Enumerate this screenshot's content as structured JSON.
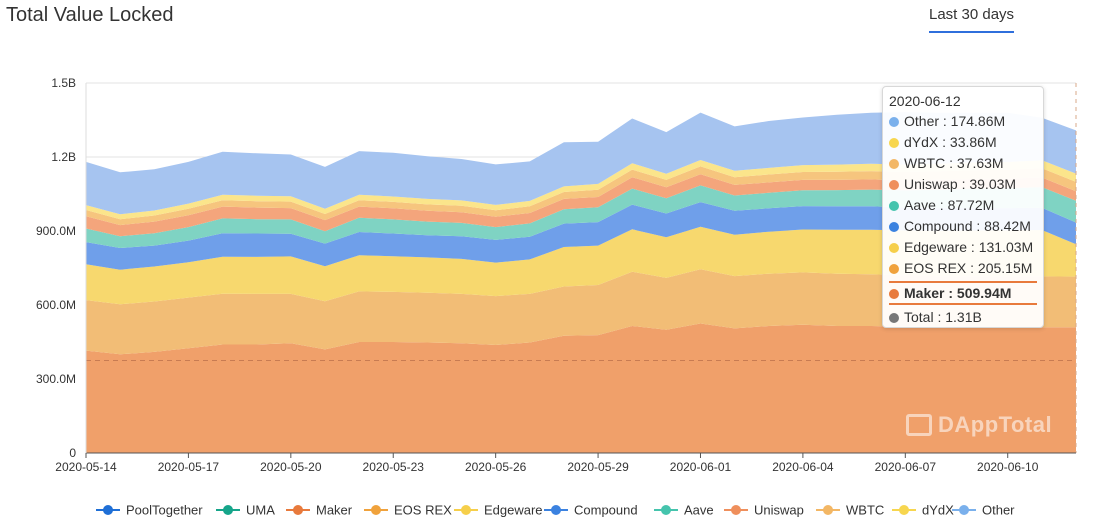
{
  "header": {
    "title": "Total Value Locked",
    "range_label": "Last 30 days"
  },
  "watermark": "DAppTotal",
  "chart_data": {
    "type": "area",
    "stacked": true,
    "title": "Total Value Locked",
    "ylim": [
      0,
      1500000000
    ],
    "yticks": [
      {
        "value": 0,
        "label": "0"
      },
      {
        "value": 300000000,
        "label": "300.0M"
      },
      {
        "value": 600000000,
        "label": "600.0M"
      },
      {
        "value": 900000000,
        "label": "900.0M"
      },
      {
        "value": 1200000000,
        "label": "1.2B"
      },
      {
        "value": 1500000000,
        "label": "1.5B"
      }
    ],
    "x": [
      "2020-05-14",
      "2020-05-15",
      "2020-05-16",
      "2020-05-17",
      "2020-05-18",
      "2020-05-19",
      "2020-05-20",
      "2020-05-21",
      "2020-05-22",
      "2020-05-23",
      "2020-05-24",
      "2020-05-25",
      "2020-05-26",
      "2020-05-27",
      "2020-05-28",
      "2020-05-29",
      "2020-05-30",
      "2020-05-31",
      "2020-06-01",
      "2020-06-02",
      "2020-06-03",
      "2020-06-04",
      "2020-06-05",
      "2020-06-06",
      "2020-06-07",
      "2020-06-08",
      "2020-06-09",
      "2020-06-10",
      "2020-06-11",
      "2020-06-12"
    ],
    "xticks": [
      "2020-05-14",
      "2020-05-17",
      "2020-05-20",
      "2020-05-23",
      "2020-05-26",
      "2020-05-29",
      "2020-06-01",
      "2020-06-04",
      "2020-06-07",
      "2020-06-10"
    ],
    "grid": true,
    "legend_position": "bottom",
    "dashed_reference_value": 375000000,
    "series": [
      {
        "name": "PoolTogether",
        "color": "#1f6fd6",
        "values": [
          0,
          0,
          0,
          0,
          0,
          0,
          0,
          0,
          0,
          0,
          0,
          0,
          0,
          0,
          0,
          0,
          0,
          0,
          0,
          0,
          0,
          0,
          0,
          0,
          0,
          0,
          0,
          0,
          0,
          0
        ]
      },
      {
        "name": "UMA",
        "color": "#16a58a",
        "values": [
          0,
          0,
          0,
          0,
          0,
          0,
          0,
          0,
          0,
          0,
          0,
          0,
          0,
          0,
          0,
          0,
          0,
          0,
          0,
          0,
          0,
          0,
          0,
          0,
          0,
          0,
          0,
          0,
          0,
          0
        ]
      },
      {
        "name": "Maker",
        "color": "#f0a06a",
        "values": [
          415000000.0,
          400000000.0,
          410000000.0,
          425000000.0,
          440000000.0,
          440000000.0,
          445000000.0,
          420000000.0,
          450000000.0,
          450000000.0,
          448000000.0,
          445000000.0,
          438000000.0,
          448000000.0,
          475000000.0,
          478000000.0,
          515000000.0,
          500000000.0,
          525000000.0,
          505000000.0,
          515000000.0,
          520000000.0,
          515000000.0,
          515000000.0,
          512000000.0,
          510000000.0,
          510000000.0,
          510000000.0,
          510000000.0,
          509940000.0
        ]
      },
      {
        "name": "EOS REX",
        "color": "#f2bd76",
        "values": [
          205000000.0,
          203000000.0,
          204000000.0,
          205000000.0,
          206000000.0,
          205000000.0,
          200000000.0,
          195000000.0,
          205000000.0,
          203000000.0,
          202000000.0,
          200000000.0,
          198000000.0,
          197000000.0,
          200000000.0,
          203000000.0,
          220000000.0,
          210000000.0,
          220000000.0,
          212000000.0,
          212000000.0,
          212000000.0,
          212000000.0,
          210000000.0,
          208000000.0,
          207000000.0,
          206000000.0,
          206000000.0,
          206000000.0,
          205150000.0
        ]
      },
      {
        "name": "Edgeware",
        "color": "#f7d86e",
        "values": [
          145000000.0,
          140000000.0,
          142000000.0,
          143000000.0,
          150000000.0,
          150000000.0,
          152000000.0,
          142000000.0,
          147000000.0,
          145000000.0,
          143000000.0,
          142000000.0,
          136000000.0,
          140000000.0,
          160000000.0,
          160000000.0,
          172000000.0,
          165000000.0,
          172000000.0,
          168000000.0,
          170000000.0,
          174000000.0,
          178000000.0,
          180000000.0,
          182000000.0,
          184000000.0,
          186000000.0,
          187000000.0,
          188000000.0,
          131030000.0
        ]
      },
      {
        "name": "Compound",
        "color": "#6f9fea",
        "values": [
          90000000.0,
          88000000.0,
          85000000.0,
          88000000.0,
          95000000.0,
          95000000.0,
          92000000.0,
          92000000.0,
          94000000.0,
          92000000.0,
          90000000.0,
          92000000.0,
          92000000.0,
          92000000.0,
          95000000.0,
          95000000.0,
          100000000.0,
          96000000.0,
          100000000.0,
          97000000.0,
          95000000.0,
          95000000.0,
          95000000.0,
          95000000.0,
          93000000.0,
          92000000.0,
          91000000.0,
          90000000.0,
          90000000.0,
          88420000.0
        ]
      },
      {
        "name": "Aave",
        "color": "#7fd3c3",
        "values": [
          55000000.0,
          48000000.0,
          50000000.0,
          55000000.0,
          60000000.0,
          58000000.0,
          58000000.0,
          50000000.0,
          58000000.0,
          57000000.0,
          55000000.0,
          54000000.0,
          52000000.0,
          54000000.0,
          58000000.0,
          60000000.0,
          65000000.0,
          62000000.0,
          68000000.0,
          62000000.0,
          63000000.0,
          64000000.0,
          66000000.0,
          68000000.0,
          70000000.0,
          74000000.0,
          78000000.0,
          80000000.0,
          84000000.0,
          87720000.0
        ]
      },
      {
        "name": "Uniswap",
        "color": "#f4a57c",
        "values": [
          50000000.0,
          45000000.0,
          47000000.0,
          48000000.0,
          48000000.0,
          47000000.0,
          46000000.0,
          45000000.0,
          45000000.0,
          45000000.0,
          44000000.0,
          43000000.0,
          42000000.0,
          42000000.0,
          42000000.0,
          42000000.0,
          46000000.0,
          44000000.0,
          45000000.0,
          43000000.0,
          42000000.0,
          42000000.0,
          41000000.0,
          41000000.0,
          40000000.0,
          40000000.0,
          40000000.0,
          39000000.0,
          39000000.0,
          39030000.0
        ]
      },
      {
        "name": "WBTC",
        "color": "#f6c57e",
        "values": [
          25000000.0,
          24000000.0,
          25000000.0,
          26000000.0,
          26000000.0,
          26000000.0,
          26000000.0,
          25000000.0,
          26000000.0,
          26000000.0,
          26000000.0,
          26000000.0,
          26000000.0,
          27000000.0,
          28000000.0,
          29000000.0,
          31000000.0,
          30000000.0,
          32000000.0,
          31000000.0,
          32000000.0,
          32000000.0,
          33000000.0,
          34000000.0,
          34000000.0,
          35000000.0,
          35000000.0,
          36000000.0,
          37000000.0,
          37630000.0
        ]
      },
      {
        "name": "dYdX",
        "color": "#fbe58b",
        "values": [
          20000000.0,
          20000000.0,
          20000000.0,
          21000000.0,
          22000000.0,
          22000000.0,
          22000000.0,
          21000000.0,
          22000000.0,
          22000000.0,
          22000000.0,
          22000000.0,
          22000000.0,
          22000000.0,
          23000000.0,
          24000000.0,
          26000000.0,
          25000000.0,
          26000000.0,
          26000000.0,
          27000000.0,
          28000000.0,
          29000000.0,
          30000000.0,
          30000000.0,
          31000000.0,
          32000000.0,
          32000000.0,
          33000000.0,
          33860000.0
        ]
      },
      {
        "name": "Other",
        "color": "#a6c4f0",
        "values": [
          175000000.0,
          170000000.0,
          167000000.0,
          169000000.0,
          174000000.0,
          172000000.0,
          169000000.0,
          170000000.0,
          177000000.0,
          177000000.0,
          173000000.0,
          168000000.0,
          164000000.0,
          160000000.0,
          179000000.0,
          171000000.0,
          181000000.0,
          169000000.0,
          192000000.0,
          180000000.0,
          190000000.0,
          193000000.0,
          202000000.0,
          206000000.0,
          213000000.0,
          206000000.0,
          201000000.0,
          199000000.0,
          172000000.0,
          174860000.0
        ]
      }
    ]
  },
  "legend_draw_order": [
    "PoolTogether",
    "UMA",
    "Maker",
    "EOS REX",
    "Edgeware",
    "Compound",
    "Aave",
    "Uniswap",
    "WBTC",
    "dYdX",
    "Other"
  ],
  "legend_colors": {
    "PoolTogether": "#1f6fd6",
    "UMA": "#16a58a",
    "Maker": "#e87a3c",
    "EOS REX": "#f0a23c",
    "Edgeware": "#f6cf4a",
    "Compound": "#3b82e0",
    "Aave": "#45c4ad",
    "Uniswap": "#ef8f5c",
    "WBTC": "#f3b765",
    "dYdX": "#f7d64f",
    "Other": "#7ab0ec"
  },
  "tooltip": {
    "date": "2020-06-12",
    "rows": [
      {
        "label": "Other : 174.86M",
        "color": "#7ab0ec",
        "highlight": false
      },
      {
        "label": "dYdX : 33.86M",
        "color": "#f7d64f",
        "highlight": false
      },
      {
        "label": "WBTC : 37.63M",
        "color": "#f3b765",
        "highlight": false
      },
      {
        "label": "Uniswap : 39.03M",
        "color": "#ef8f5c",
        "highlight": false
      },
      {
        "label": "Aave : 87.72M",
        "color": "#45c4ad",
        "highlight": false
      },
      {
        "label": "Compound : 88.42M",
        "color": "#3b82e0",
        "highlight": false
      },
      {
        "label": "Edgeware : 131.03M",
        "color": "#f6cf4a",
        "highlight": false
      },
      {
        "label": "EOS REX : 205.15M",
        "color": "#f0a23c",
        "highlight": false
      },
      {
        "label": "Maker : 509.94M",
        "color": "#e87a3c",
        "highlight": true
      },
      {
        "label": "Total : 1.31B",
        "color": "#777777",
        "highlight": false
      }
    ]
  }
}
